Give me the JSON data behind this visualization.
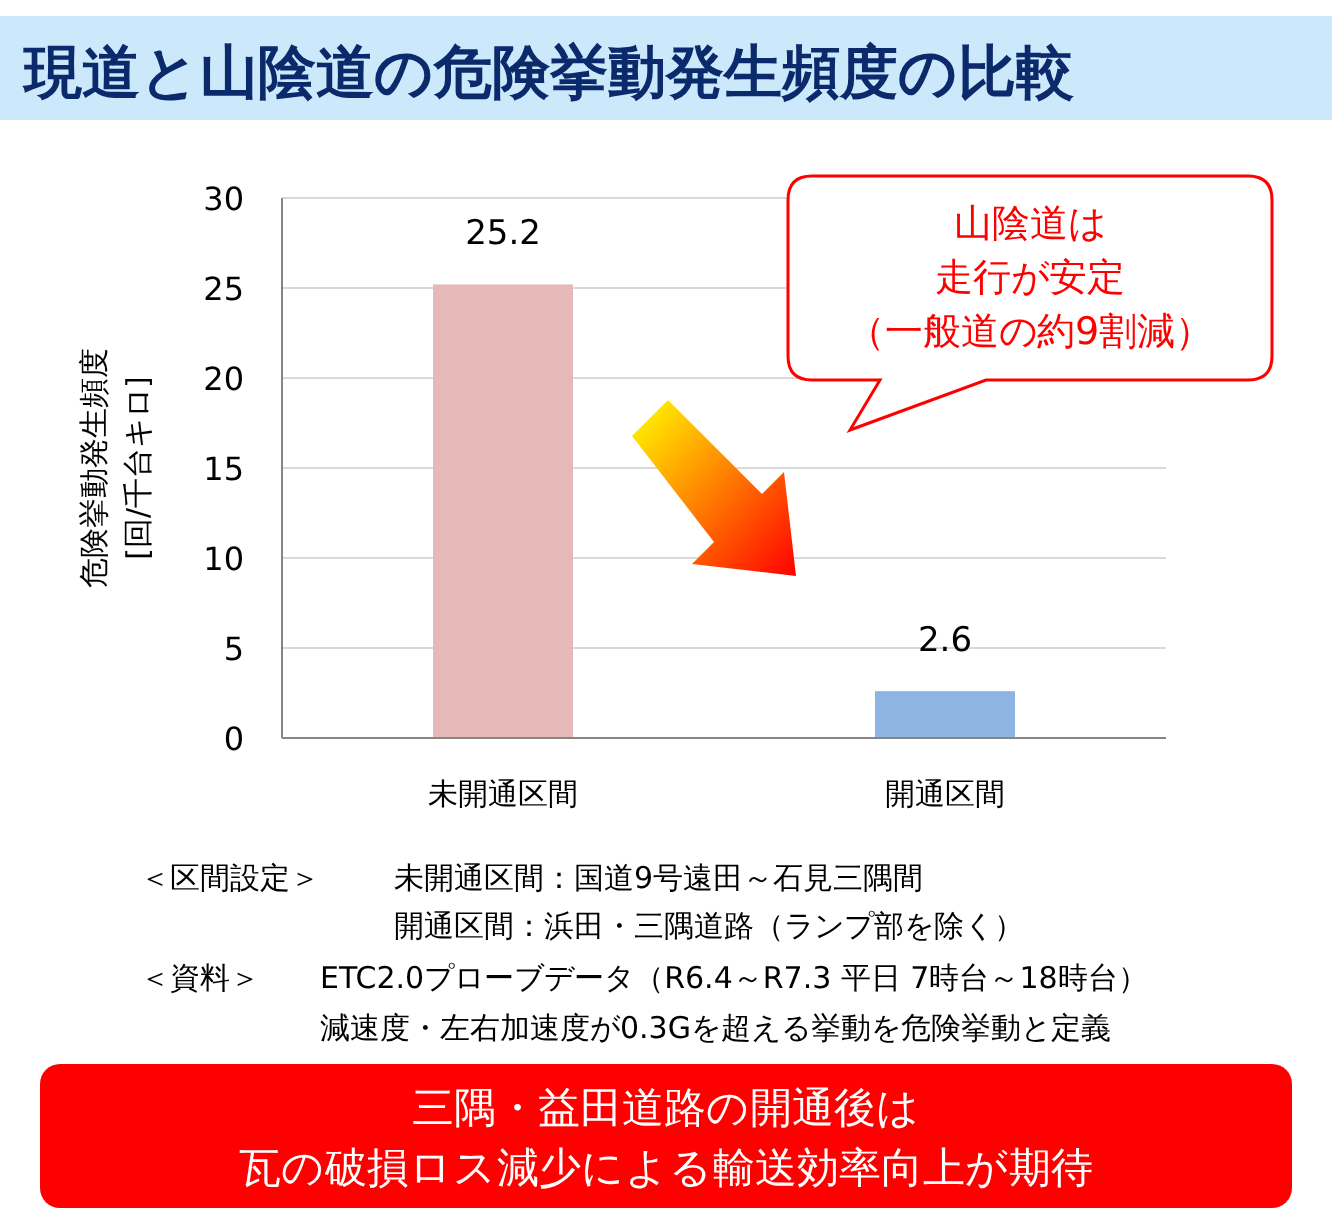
{
  "chart_data": {
    "type": "bar",
    "title": "現道と山陰道の危険挙動発生頻度の比較",
    "ylabel": "危険挙動発生頻度\n[回/千台キロ]",
    "categories": [
      "未開通区間",
      "開通区間"
    ],
    "values": [
      25.2,
      2.6
    ],
    "colors": [
      "#e6b9b8",
      "#8db4e2"
    ],
    "ylim": [
      0,
      30
    ],
    "yticks": [
      0,
      5,
      10,
      15,
      20,
      25,
      30
    ],
    "grid": "y",
    "data_labels": true,
    "annotations": [
      "山陰道は",
      "走行が安定",
      "（一般道の約9割減）",
      "＜区間設定＞",
      "未開通区間：国道9号遠田～石見三隅間",
      "開通区間：浜田・三隅道路（ランプ部を除く）",
      "＜資料＞",
      "ETC2.0プローブデータ（R6.4～R7.3 平日 7時台～18時台）",
      "減速度・左右加速度が0.3Gを超える挙動を危険挙動と定義",
      "三隅・益田道路の開通後は",
      "瓦の破損ロス減少による輸送効率向上が期待"
    ]
  }
}
